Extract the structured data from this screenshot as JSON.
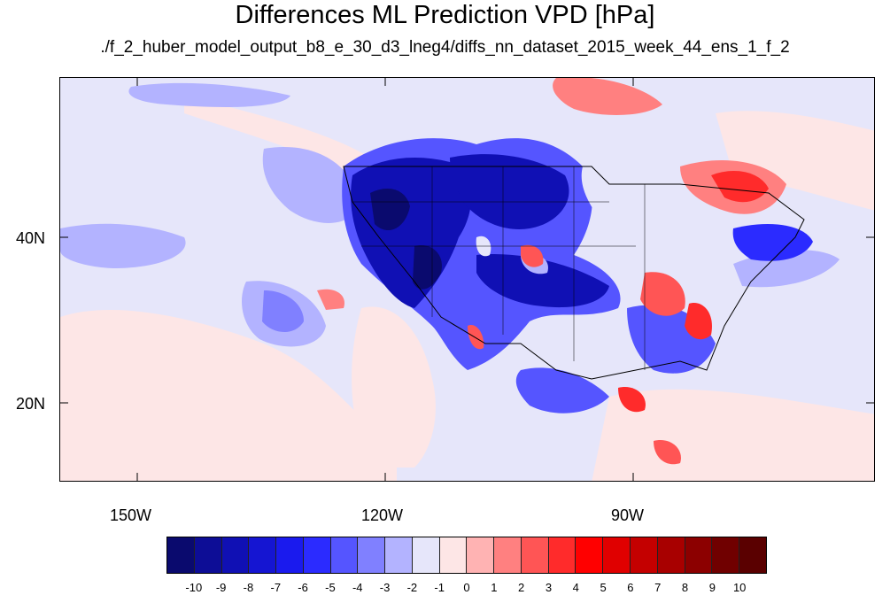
{
  "title": "Differences ML Prediction VPD [hPa]",
  "subtitle": "./f_2_huber_model_output_b8_e_30_d3_lneg4/diffs_nn_dataset_2015_week_44_ens_1_f_2",
  "axes": {
    "x_ticks": [
      "150W",
      "120W",
      "90W"
    ],
    "y_ticks": [
      "40N",
      "20N"
    ]
  },
  "colorbar": {
    "labels": [
      "-10",
      "-9",
      "-8",
      "-7",
      "-6",
      "-5",
      "-4",
      "-3",
      "-2",
      "-1",
      "0",
      "1",
      "2",
      "3",
      "4",
      "5",
      "6",
      "7",
      "8",
      "9",
      "10"
    ],
    "colors": [
      "#0a0a6e",
      "#0d0d96",
      "#1010b4",
      "#1515d2",
      "#1a1aee",
      "#2b2bff",
      "#5555ff",
      "#8080ff",
      "#b3b3ff",
      "#e6e6fa",
      "#fde6e6",
      "#ffb3b3",
      "#ff8080",
      "#ff5555",
      "#ff2b2b",
      "#ff0000",
      "#e00000",
      "#c40000",
      "#a80000",
      "#8c0000",
      "#700000"
    ]
  }
}
